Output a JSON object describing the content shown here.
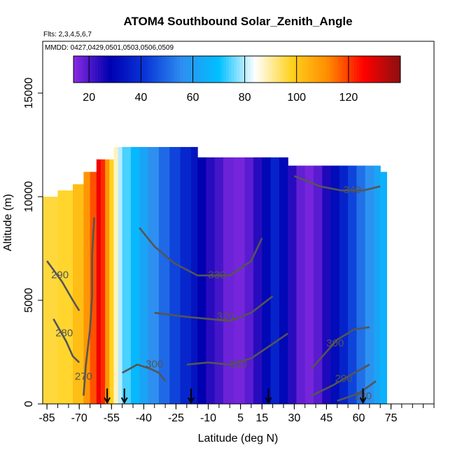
{
  "chart_data": {
    "type": "heatmap",
    "title": "ATOM4 Southbound Solar_Zenith_Angle",
    "annotations": [
      "Flts: 2,3,4,5,6,7",
      "MMDD: 0427,0429,0501,0503,0506,0509"
    ],
    "xlabel": "Latitude (deg N)",
    "ylabel": "Altitude (m)",
    "xlim": [
      -87,
      95
    ],
    "ylim": [
      0,
      17500
    ],
    "x_ticks": [
      -85,
      -70,
      -55,
      -40,
      -25,
      -10,
      5,
      15,
      30,
      45,
      60,
      75
    ],
    "y_ticks": [
      0,
      5000,
      10000,
      15000
    ],
    "colorbar": {
      "range": [
        14,
        140
      ],
      "ticks": [
        20,
        40,
        60,
        80,
        100,
        120
      ],
      "colors": [
        "#8a2be2",
        "#0000b0",
        "#0a37d8",
        "#2e8ff0",
        "#00bfff",
        "#ffffff",
        "#ffd21e",
        "#ff8c00",
        "#ff0000",
        "#8b1010"
      ]
    },
    "columns": [
      {
        "x0": -87,
        "x1": -80,
        "top": 10000,
        "sza": 96
      },
      {
        "x0": -80,
        "x1": -73,
        "top": 10300,
        "sza": 97
      },
      {
        "x0": -73,
        "x1": -68,
        "top": 10600,
        "sza": 102
      },
      {
        "x0": -68,
        "x1": -65,
        "top": 11200,
        "sza": 110
      },
      {
        "x0": -65,
        "x1": -62,
        "top": 11200,
        "sza": 118
      },
      {
        "x0": -62,
        "x1": -60,
        "top": 11800,
        "sza": 128
      },
      {
        "x0": -60,
        "x1": -58,
        "top": 11800,
        "sza": 122
      },
      {
        "x0": -58,
        "x1": -56,
        "top": 11800,
        "sza": 110
      },
      {
        "x0": -56,
        "x1": -54,
        "top": 11800,
        "sza": 98
      },
      {
        "x0": -54,
        "x1": -52,
        "top": 12400,
        "sza": 88
      },
      {
        "x0": -52,
        "x1": -50,
        "top": 12400,
        "sza": 80
      },
      {
        "x0": -50,
        "x1": -46,
        "top": 12400,
        "sza": 74
      },
      {
        "x0": -46,
        "x1": -42,
        "top": 12400,
        "sza": 68
      },
      {
        "x0": -42,
        "x1": -38,
        "top": 12400,
        "sza": 62
      },
      {
        "x0": -38,
        "x1": -33,
        "top": 12400,
        "sza": 56
      },
      {
        "x0": -33,
        "x1": -28,
        "top": 12400,
        "sza": 50
      },
      {
        "x0": -28,
        "x1": -23,
        "top": 12400,
        "sza": 44
      },
      {
        "x0": -23,
        "x1": -18,
        "top": 12400,
        "sza": 38
      },
      {
        "x0": -18,
        "x1": -15,
        "top": 12400,
        "sza": 33
      },
      {
        "x0": -15,
        "x1": -11,
        "top": 11900,
        "sza": 28
      },
      {
        "x0": -11,
        "x1": -7,
        "top": 11900,
        "sza": 24
      },
      {
        "x0": -7,
        "x1": -3,
        "top": 11900,
        "sza": 21
      },
      {
        "x0": -3,
        "x1": 2,
        "top": 11900,
        "sza": 17
      },
      {
        "x0": 2,
        "x1": 7,
        "top": 11900,
        "sza": 16
      },
      {
        "x0": 7,
        "x1": 11,
        "top": 11900,
        "sza": 19
      },
      {
        "x0": 11,
        "x1": 15,
        "top": 11900,
        "sza": 24
      },
      {
        "x0": 15,
        "x1": 19,
        "top": 11900,
        "sza": 30
      },
      {
        "x0": 19,
        "x1": 23,
        "top": 11900,
        "sza": 37
      },
      {
        "x0": 23,
        "x1": 27,
        "top": 11900,
        "sza": 30
      },
      {
        "x0": 27,
        "x1": 31,
        "top": 11500,
        "sza": 24
      },
      {
        "x0": 31,
        "x1": 35,
        "top": 11500,
        "sza": 18
      },
      {
        "x0": 35,
        "x1": 39,
        "top": 11500,
        "sza": 16
      },
      {
        "x0": 39,
        "x1": 43,
        "top": 11500,
        "sza": 19
      },
      {
        "x0": 43,
        "x1": 47,
        "top": 11500,
        "sza": 25
      },
      {
        "x0": 47,
        "x1": 51,
        "top": 11500,
        "sza": 31
      },
      {
        "x0": 51,
        "x1": 55,
        "top": 11500,
        "sza": 37
      },
      {
        "x0": 55,
        "x1": 59,
        "top": 11500,
        "sza": 44
      },
      {
        "x0": 59,
        "x1": 63,
        "top": 11500,
        "sza": 51
      },
      {
        "x0": 63,
        "x1": 67,
        "top": 11500,
        "sza": 57
      },
      {
        "x0": 67,
        "x1": 70,
        "top": 11500,
        "sza": 62
      },
      {
        "x0": 70,
        "x1": 73,
        "top": 11200,
        "sza": 66
      }
    ],
    "contours": [
      {
        "label": "270",
        "label_pos": [
          -68,
          1300
        ],
        "points": [
          [
            -68,
            400
          ],
          [
            -67,
            1800
          ],
          [
            -65,
            3600
          ],
          [
            -64,
            5200
          ],
          [
            -64,
            7200
          ],
          [
            -63,
            9000
          ]
        ]
      },
      {
        "label": "280",
        "label_pos": [
          -77,
          3400
        ],
        "points": [
          [
            -82,
            4100
          ],
          [
            -76,
            3000
          ],
          [
            -73,
            2300
          ],
          [
            -70,
            2000
          ]
        ]
      },
      {
        "label": "280",
        "label_pos": [
          62,
          350
        ],
        "points": [
          [
            50,
            150
          ],
          [
            60,
            500
          ],
          [
            68,
            1100
          ]
        ]
      },
      {
        "label": "290",
        "label_pos": [
          -79,
          6200
        ],
        "points": [
          [
            -85,
            6900
          ],
          [
            -78,
            5900
          ],
          [
            -73,
            5000
          ],
          [
            -70,
            4500
          ]
        ]
      },
      {
        "label": "290",
        "label_pos": [
          53,
          1200
        ],
        "points": [
          [
            38,
            400
          ],
          [
            48,
            900
          ],
          [
            58,
            1500
          ],
          [
            65,
            1900
          ]
        ]
      },
      {
        "label": "300",
        "label_pos": [
          -35,
          1900
        ],
        "points": [
          [
            -50,
            1500
          ],
          [
            -43,
            1900
          ],
          [
            -37,
            1700
          ],
          [
            -33,
            1500
          ],
          [
            -30,
            1100
          ]
        ]
      },
      {
        "label": "300",
        "label_pos": [
          49,
          2900
        ],
        "points": [
          [
            38,
            1700
          ],
          [
            44,
            2400
          ],
          [
            50,
            3100
          ],
          [
            58,
            3600
          ],
          [
            65,
            3700
          ]
        ]
      },
      {
        "label": "310",
        "label_pos": [
          4,
          1900
        ],
        "points": [
          [
            -20,
            1900
          ],
          [
            -10,
            2000
          ],
          [
            0,
            1900
          ],
          [
            10,
            2200
          ],
          [
            20,
            2900
          ],
          [
            27,
            3400
          ]
        ]
      },
      {
        "label": "320",
        "label_pos": [
          -2,
          4200
        ],
        "points": [
          [
            -35,
            4400
          ],
          [
            -20,
            4200
          ],
          [
            -10,
            4100
          ],
          [
            0,
            4000
          ],
          [
            10,
            4400
          ],
          [
            20,
            5200
          ]
        ]
      },
      {
        "label": "330",
        "label_pos": [
          -6,
          6200
        ],
        "points": [
          [
            -42,
            8500
          ],
          [
            -35,
            7600
          ],
          [
            -26,
            6800
          ],
          [
            -15,
            6200
          ],
          [
            0,
            6200
          ],
          [
            10,
            6900
          ],
          [
            15,
            8000
          ]
        ]
      },
      {
        "label": "340",
        "label_pos": [
          57,
          10300
        ],
        "points": [
          [
            30,
            11000
          ],
          [
            42,
            10500
          ],
          [
            52,
            10300
          ],
          [
            62,
            10300
          ],
          [
            70,
            10500
          ]
        ]
      }
    ],
    "arrows_x": [
      -57,
      -49,
      -18,
      18,
      62
    ],
    "colors": {
      "contour": "#555555"
    }
  }
}
